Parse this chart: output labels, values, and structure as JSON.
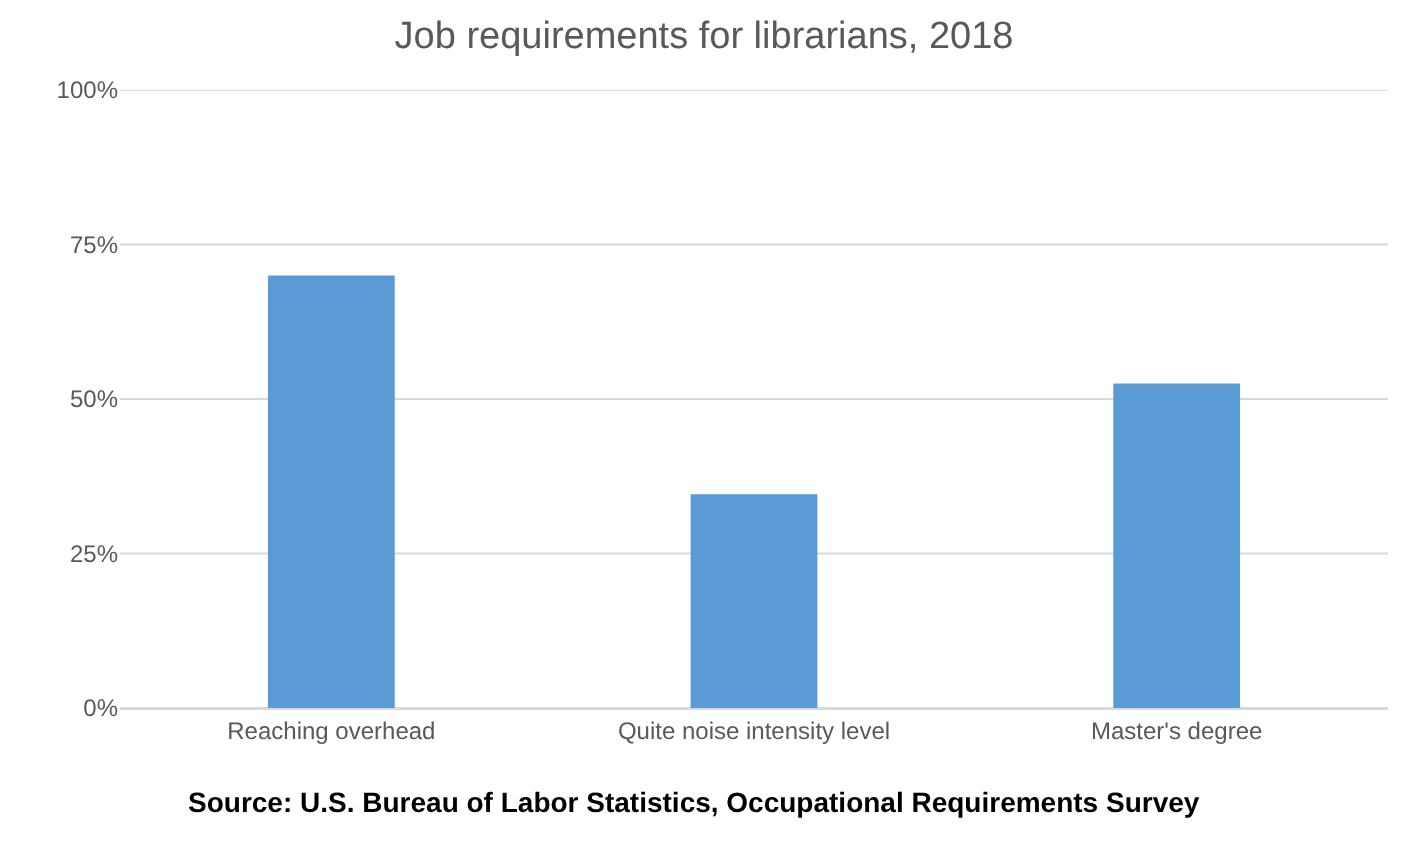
{
  "chart_data": {
    "type": "bar",
    "title": "Job requirements for librarians, 2018",
    "categories": [
      "Reaching overhead",
      "Quite noise intensity level",
      "Master's degree"
    ],
    "values": [
      70,
      34.6,
      52.5
    ],
    "color": "#5b9bd5",
    "ylim": [
      0,
      100
    ],
    "yticks": [
      {
        "value": 0,
        "label": "0%"
      },
      {
        "value": 25,
        "label": "25%"
      },
      {
        "value": 50,
        "label": "50%"
      },
      {
        "value": 75,
        "label": "75%"
      },
      {
        "value": 100,
        "label": "100%"
      }
    ],
    "grid": "y",
    "annotations": [
      "Source: U.S. Bureau of Labor Statistics, Occupational Requirements Survey"
    ]
  }
}
